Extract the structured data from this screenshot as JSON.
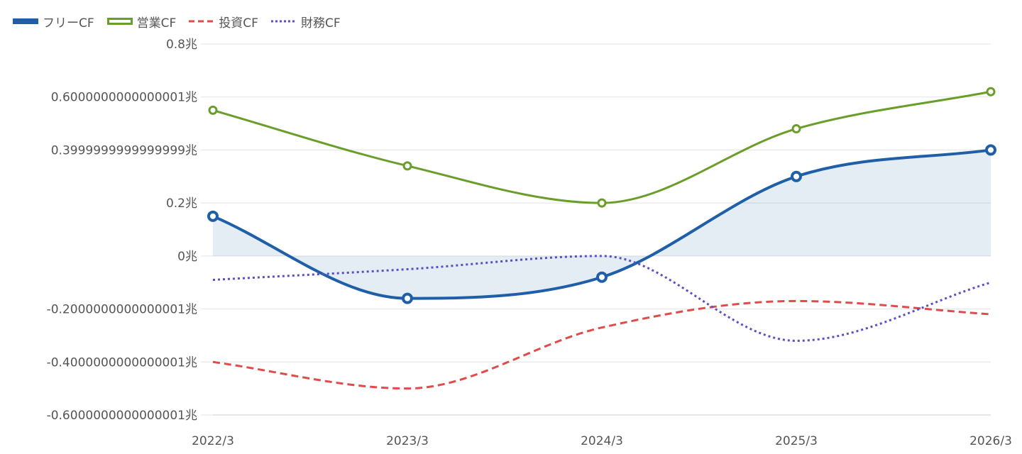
{
  "chart_data": {
    "type": "line",
    "categories": [
      "2022/3",
      "2023/3",
      "2024/3",
      "2025/3",
      "2026/3"
    ],
    "ylim": [
      -0.6,
      0.8
    ],
    "yticks": [
      {
        "value": 0.8,
        "label": "0.8兆"
      },
      {
        "value": 0.6000000000000001,
        "label": "0.6000000000000001兆"
      },
      {
        "value": 0.3999999999999999,
        "label": "0.3999999999999999兆"
      },
      {
        "value": 0.2,
        "label": "0.2兆"
      },
      {
        "value": 0,
        "label": "0兆"
      },
      {
        "value": -0.2000000000000001,
        "label": "-0.2000000000000001兆"
      },
      {
        "value": -0.4000000000000001,
        "label": "-0.4000000000000001兆"
      },
      {
        "value": -0.6000000000000001,
        "label": "-0.6000000000000001兆"
      }
    ],
    "grid": true,
    "legend_position": "top-left",
    "series": [
      {
        "name": "フリーCF",
        "values": [
          0.15,
          -0.16,
          -0.08,
          0.3,
          0.4
        ],
        "color": "#1f5fa8",
        "style": "solid",
        "fill_to_zero": true,
        "markers": true
      },
      {
        "name": "営業CF",
        "values": [
          0.55,
          0.34,
          0.2,
          0.48,
          0.62
        ],
        "color": "#6a9e2a",
        "style": "solid",
        "fill_to_zero": false,
        "markers": true
      },
      {
        "name": "投資CF",
        "values": [
          -0.4,
          -0.5,
          -0.27,
          -0.17,
          -0.22
        ],
        "color": "#e04b4b",
        "style": "dashed",
        "fill_to_zero": false,
        "markers": false
      },
      {
        "name": "財務CF",
        "values": [
          -0.09,
          -0.05,
          0.0,
          -0.32,
          -0.1
        ],
        "color": "#5a4fc7",
        "style": "dotted",
        "fill_to_zero": false,
        "markers": false
      }
    ]
  }
}
